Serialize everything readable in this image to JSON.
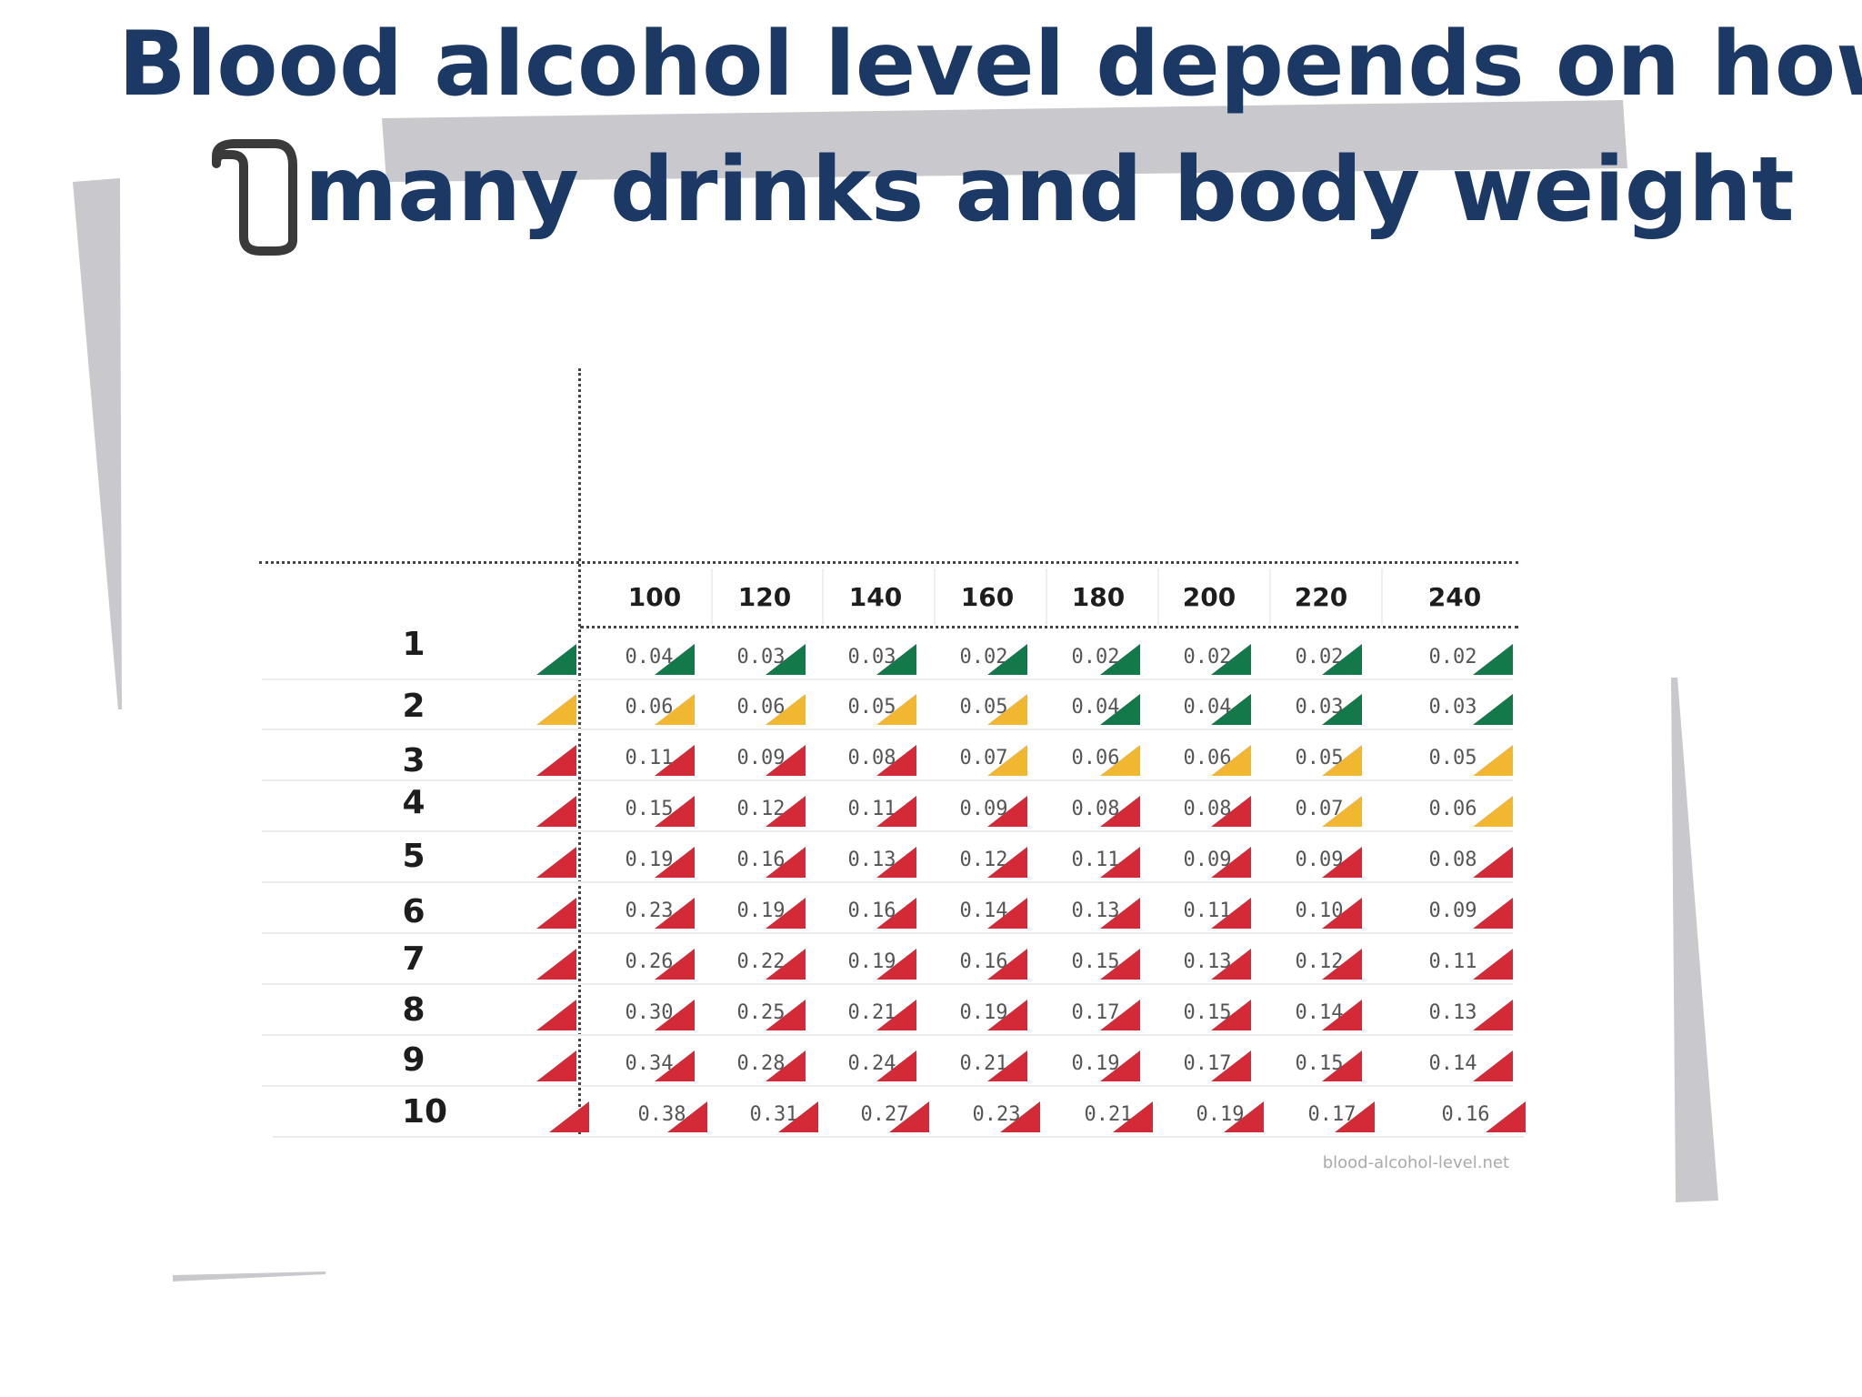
{
  "title": {
    "line1": "Blood alcohol level depends on how",
    "line2": "many drinks and body weight",
    "color": "#1c3865"
  },
  "bullet_icon": "rounded-bracket-bullet-icon",
  "chart_data": {
    "type": "table",
    "weights": [
      "100",
      "120",
      "140",
      "160",
      "180",
      "200",
      "220",
      "240"
    ],
    "drinks": [
      "1",
      "2",
      "3",
      "4",
      "5",
      "6",
      "7",
      "8",
      "9",
      "10"
    ],
    "values": [
      [
        "0.04",
        "0.03",
        "0.03",
        "0.02",
        "0.02",
        "0.02",
        "0.02",
        "0.02"
      ],
      [
        "0.06",
        "0.06",
        "0.05",
        "0.05",
        "0.04",
        "0.04",
        "0.03",
        "0.03"
      ],
      [
        "0.11",
        "0.09",
        "0.08",
        "0.07",
        "0.06",
        "0.06",
        "0.05",
        "0.05"
      ],
      [
        "0.15",
        "0.12",
        "0.11",
        "0.09",
        "0.08",
        "0.08",
        "0.07",
        "0.06"
      ],
      [
        "0.19",
        "0.16",
        "0.13",
        "0.12",
        "0.11",
        "0.09",
        "0.09",
        "0.08"
      ],
      [
        "0.23",
        "0.19",
        "0.16",
        "0.14",
        "0.13",
        "0.11",
        "0.10",
        "0.09"
      ],
      [
        "0.26",
        "0.22",
        "0.19",
        "0.16",
        "0.15",
        "0.13",
        "0.12",
        "0.11"
      ],
      [
        "0.30",
        "0.25",
        "0.21",
        "0.19",
        "0.17",
        "0.15",
        "0.14",
        "0.13"
      ],
      [
        "0.34",
        "0.28",
        "0.24",
        "0.21",
        "0.19",
        "0.17",
        "0.15",
        "0.14"
      ],
      [
        "0.38",
        "0.31",
        "0.27",
        "0.23",
        "0.21",
        "0.19",
        "0.17",
        "0.16"
      ]
    ],
    "status_levels": {
      "green": "#13784a",
      "yellow": "#f2b730",
      "red": "#d42a38"
    },
    "status": [
      [
        "green",
        "green",
        "green",
        "green",
        "green",
        "green",
        "green",
        "green",
        "green"
      ],
      [
        "yellow",
        "yellow",
        "yellow",
        "yellow",
        "yellow",
        "green",
        "green",
        "green",
        "green"
      ],
      [
        "red",
        "red",
        "red",
        "red",
        "yellow",
        "yellow",
        "yellow",
        "yellow",
        "yellow"
      ],
      [
        "red",
        "red",
        "red",
        "red",
        "red",
        "red",
        "red",
        "yellow",
        "yellow"
      ],
      [
        "red",
        "red",
        "red",
        "red",
        "red",
        "red",
        "red",
        "red",
        "red"
      ],
      [
        "red",
        "red",
        "red",
        "red",
        "red",
        "red",
        "red",
        "red",
        "red"
      ],
      [
        "red",
        "red",
        "red",
        "red",
        "red",
        "red",
        "red",
        "red",
        "red"
      ],
      [
        "red",
        "red",
        "red",
        "red",
        "red",
        "red",
        "red",
        "red",
        "red"
      ],
      [
        "red",
        "red",
        "red",
        "red",
        "red",
        "red",
        "red",
        "red",
        "red"
      ],
      [
        "red",
        "red",
        "red",
        "red",
        "red",
        "red",
        "red",
        "red",
        "red"
      ]
    ],
    "credit": "blood-alcohol-level.net"
  }
}
